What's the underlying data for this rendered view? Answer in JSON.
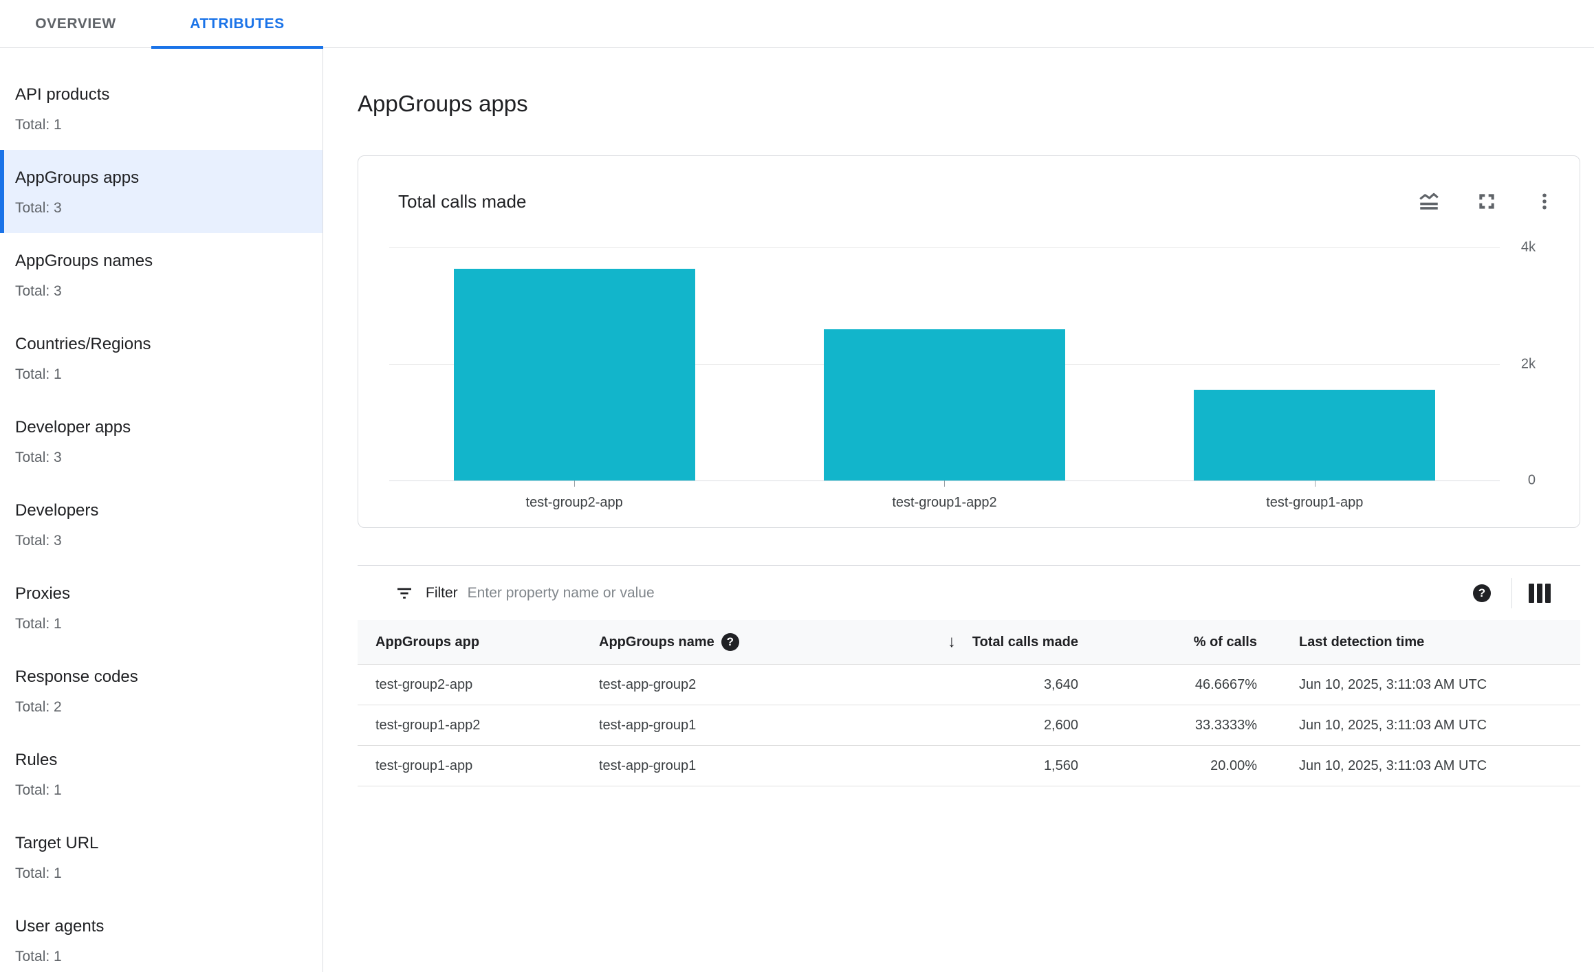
{
  "tabs": [
    {
      "label": "OVERVIEW",
      "active": false
    },
    {
      "label": "ATTRIBUTES",
      "active": true
    }
  ],
  "sidebar": {
    "items": [
      {
        "label": "API products",
        "total": "Total: 1"
      },
      {
        "label": "AppGroups apps",
        "total": "Total: 3",
        "selected": true
      },
      {
        "label": "AppGroups names",
        "total": "Total: 3"
      },
      {
        "label": "Countries/Regions",
        "total": "Total: 1"
      },
      {
        "label": "Developer apps",
        "total": "Total: 3"
      },
      {
        "label": "Developers",
        "total": "Total: 3"
      },
      {
        "label": "Proxies",
        "total": "Total: 1"
      },
      {
        "label": "Response codes",
        "total": "Total: 2"
      },
      {
        "label": "Rules",
        "total": "Total: 1"
      },
      {
        "label": "Target URL",
        "total": "Total: 1"
      },
      {
        "label": "User agents",
        "total": "Total: 1"
      }
    ]
  },
  "page": {
    "title": "AppGroups apps"
  },
  "chart_card": {
    "title": "Total calls made",
    "icons": [
      "chart-type",
      "fullscreen",
      "more-options"
    ]
  },
  "chart_data": {
    "type": "bar",
    "title": "Total calls made",
    "categories": [
      "test-group2-app",
      "test-group1-app2",
      "test-group1-app"
    ],
    "values": [
      3640,
      2600,
      1560
    ],
    "ylim": [
      0,
      4000
    ],
    "ytick_labels": [
      "4k",
      "2k",
      "0"
    ],
    "bar_color": "#12b5cb",
    "grid": true,
    "legend": false
  },
  "filter": {
    "label": "Filter",
    "placeholder": "Enter property name or value"
  },
  "table": {
    "columns": [
      "AppGroups app",
      "AppGroups name",
      "Total calls made",
      "% of calls",
      "Last detection time"
    ],
    "sort_column": "Total calls made",
    "sort_direction": "descending",
    "help_glyph": "?",
    "rows": [
      {
        "app": "test-group2-app",
        "name": "test-app-group2",
        "calls": "3,640",
        "pct": "46.6667%",
        "time": "Jun 10, 2025, 3:11:03 AM UTC"
      },
      {
        "app": "test-group1-app2",
        "name": "test-app-group1",
        "calls": "2,600",
        "pct": "33.3333%",
        "time": "Jun 10, 2025, 3:11:03 AM UTC"
      },
      {
        "app": "test-group1-app",
        "name": "test-app-group1",
        "calls": "1,560",
        "pct": "20.00%",
        "time": "Jun 10, 2025, 3:11:03 AM UTC"
      }
    ]
  },
  "colors": {
    "accent_blue": "#1a73e8",
    "selected_bg": "#e8f0fe",
    "bar_teal": "#12b5cb",
    "border": "#dadce0",
    "text_primary": "#202124",
    "text_secondary": "#5f6368"
  }
}
